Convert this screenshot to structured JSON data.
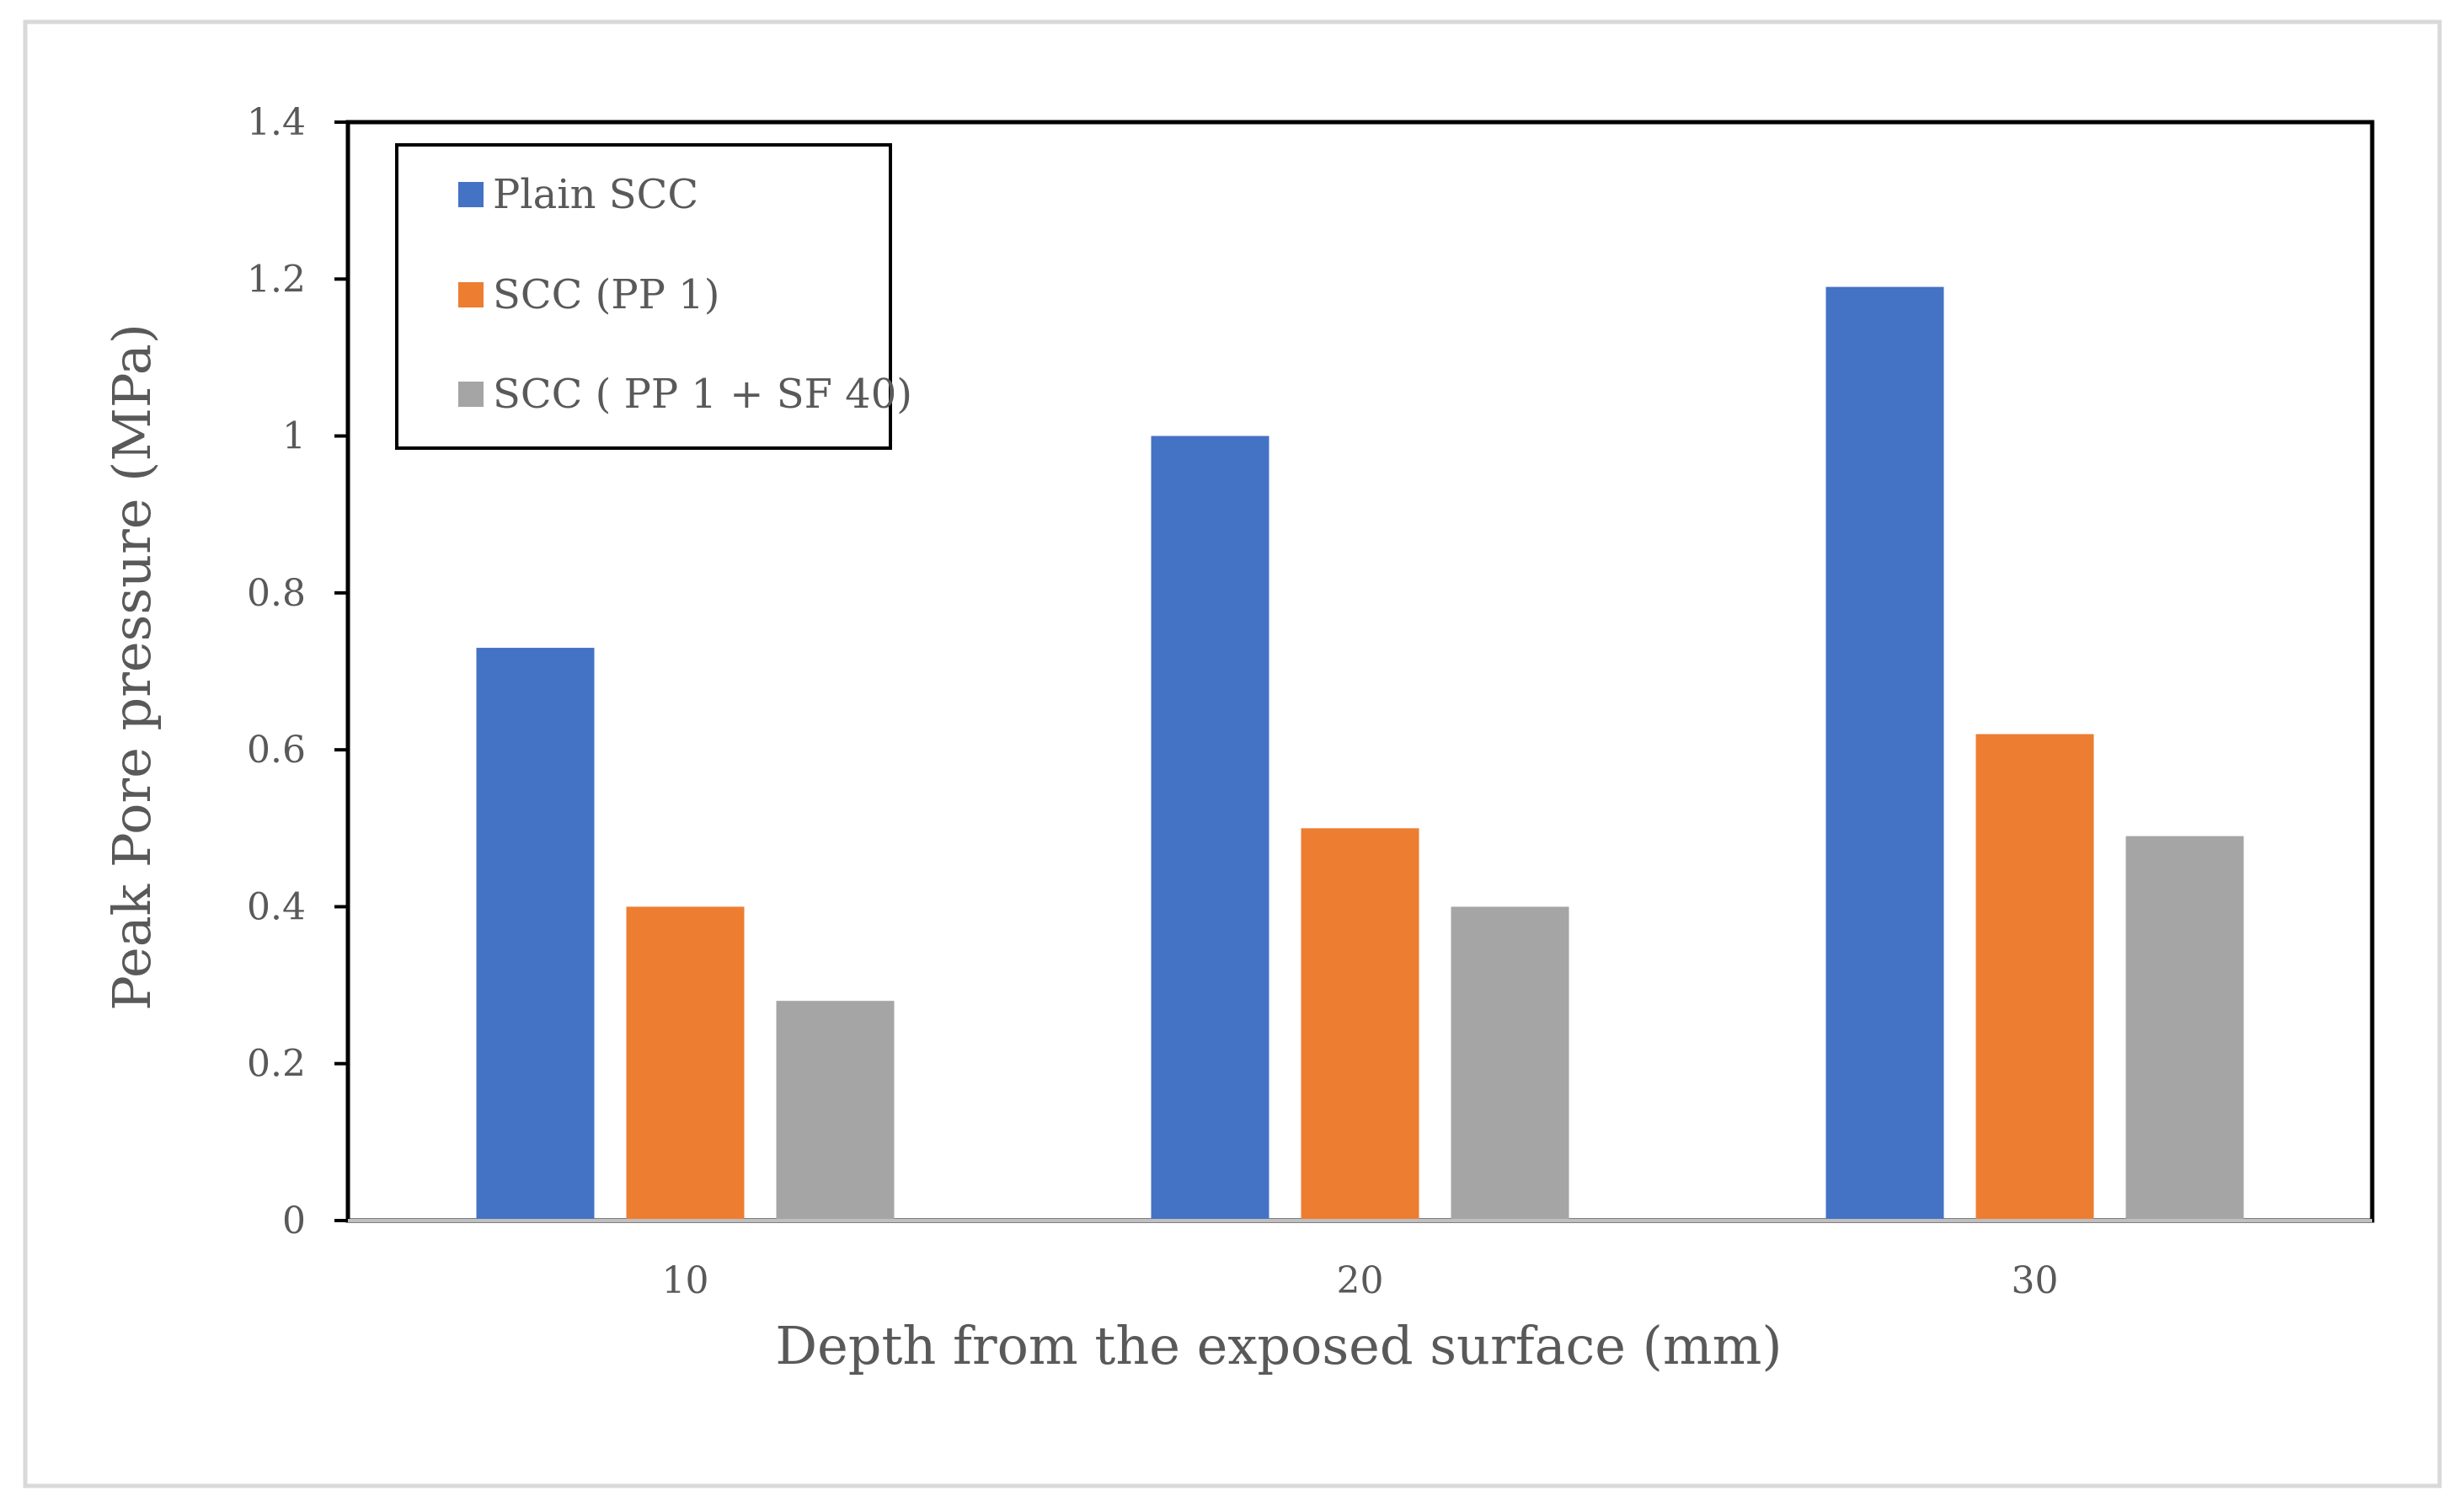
{
  "chart_data": {
    "type": "bar",
    "title": "",
    "xlabel": "Depth from the exposed surface (mm)",
    "ylabel": "Peak Pore pressure (MPa)",
    "categories": [
      "10",
      "20",
      "30"
    ],
    "ylim": [
      0,
      1.4
    ],
    "yticks": [
      "0",
      "0.2",
      "0.4",
      "0.6",
      "0.8",
      "1",
      "1.2",
      "1.4"
    ],
    "grid": false,
    "legend_position": "top-left",
    "series": [
      {
        "name": "Plain SCC",
        "color": "#4472C4",
        "values": [
          0.73,
          1.0,
          1.19
        ]
      },
      {
        "name": "SCC (PP 1)",
        "color": "#ED7D31",
        "values": [
          0.4,
          0.5,
          0.62
        ]
      },
      {
        "name": "SCC ( PP 1 + SF 40)",
        "color": "#A5A5A5",
        "values": [
          0.28,
          0.4,
          0.49
        ]
      }
    ]
  }
}
